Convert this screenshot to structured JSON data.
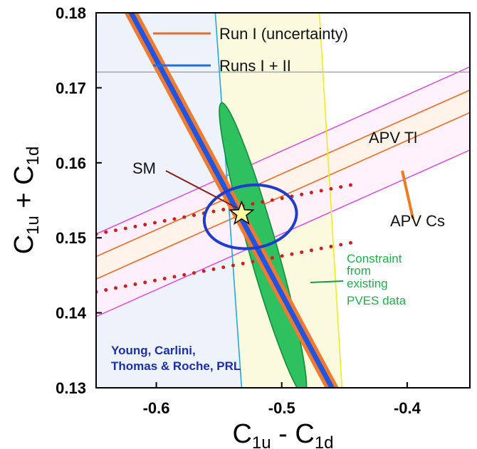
{
  "chart_data": {
    "type": "contour",
    "xlabel": {
      "main": "C",
      "sub1": "1u",
      "mid": " - C",
      "sub2": "1d"
    },
    "ylabel": {
      "main": "C",
      "sub1": "1u",
      "mid": " + C",
      "sub2": "1d"
    },
    "xlim": [
      -0.648,
      -0.35
    ],
    "ylim": [
      0.13,
      0.18
    ],
    "xticks": [
      {
        "value": -0.6,
        "label": "-0.6"
      },
      {
        "value": -0.5,
        "label": "-0.5"
      },
      {
        "value": -0.4,
        "label": "-0.4"
      }
    ],
    "yticks": [
      {
        "value": 0.13,
        "label": "0.13"
      },
      {
        "value": 0.14,
        "label": "0.14"
      },
      {
        "value": 0.15,
        "label": "0.15"
      },
      {
        "value": 0.16,
        "label": "0.16"
      },
      {
        "value": 0.17,
        "label": "0.17"
      },
      {
        "value": 0.18,
        "label": "0.18"
      }
    ],
    "legend": [
      {
        "label": "Run I (uncertainty)",
        "color": "#e0702a"
      },
      {
        "label": "Runs I + II",
        "color": "#1f6fe0"
      }
    ],
    "bands": [
      {
        "name": "APV Tl",
        "label": "APV Tl",
        "color": "#e040e0",
        "line1": [
          [
            -0.648,
            0.1505
          ],
          [
            -0.35,
            0.1728
          ]
        ],
        "line2": [
          [
            -0.648,
            0.1395
          ],
          [
            -0.35,
            0.1617
          ]
        ]
      },
      {
        "name": "APV Cs",
        "label": "APV Cs",
        "color": "#f06a20",
        "line1": [
          [
            -0.648,
            0.1475
          ],
          [
            -0.35,
            0.1697
          ]
        ],
        "line2": [
          [
            -0.648,
            0.1445
          ],
          [
            -0.35,
            0.1667
          ]
        ]
      }
    ],
    "run_band": {
      "color": "#f07a30",
      "center_color": "#2255dd",
      "center": [
        [
          -0.62,
          0.18
        ],
        [
          -0.46,
          0.13
        ]
      ],
      "half_width_x": 0.0055
    },
    "vertical_line": {
      "color": "#22aadd",
      "points": [
        [
          -0.553,
          0.18
        ],
        [
          -0.532,
          0.13
        ]
      ]
    },
    "yellow_band": {
      "color": "#f1eb22",
      "fill": "#fbf9de",
      "left": [
        [
          -0.553,
          0.18
        ],
        [
          -0.532,
          0.13
        ]
      ],
      "right": [
        [
          -0.47,
          0.18
        ],
        [
          -0.452,
          0.13
        ]
      ]
    },
    "horizontal_line": {
      "y": 0.1721,
      "color": "#999999"
    },
    "pves_ellipse": {
      "label": "Constraint from existing PVES data",
      "color": "#2fc060",
      "edge": "#0f8a3a",
      "center": [
        -0.515,
        0.1485
      ],
      "semi_major": 0.0415,
      "semi_minor": 0.0115
    },
    "dotted_ellipse": {
      "color": "#cc2020",
      "line1": [
        [
          -0.648,
          0.1505
        ],
        [
          -0.44,
          0.1572
        ]
      ],
      "line2": [
        [
          -0.648,
          0.1428
        ],
        [
          -0.44,
          0.1495
        ]
      ]
    },
    "blue_ellipse": {
      "color": "#1f3ccc",
      "center": [
        -0.525,
        0.1528
      ],
      "rx": 0.037,
      "ry": 0.0042
    },
    "sm_point": {
      "label": "SM",
      "x": -0.532,
      "y": 0.1532,
      "fill": "#ffffa0",
      "stroke": "#000000"
    },
    "annotations": {
      "apv_tl": "APV Tl",
      "apv_cs": "APV Cs",
      "pves_lines": [
        "Constraint",
        "from",
        "existing",
        "PVES data"
      ],
      "credit_lines": [
        "Young, Carlini,",
        "Thomas & Roche, PRL"
      ]
    },
    "colors": {
      "left_region": "#eef2fa",
      "apv_tl_band_fill": "#fff0fb",
      "apv_cs_band_fill": "#fff3e8"
    }
  }
}
